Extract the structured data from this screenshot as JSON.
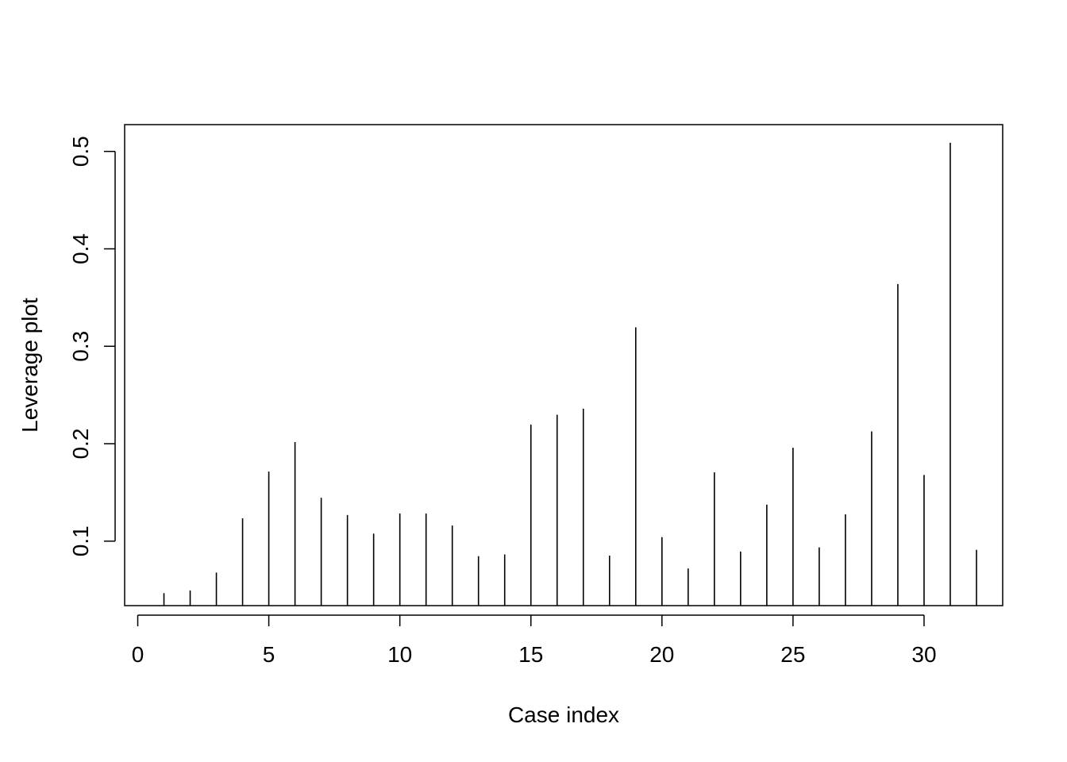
{
  "chart_data": {
    "type": "bar",
    "style": "histogram-spikes",
    "title": "",
    "xlabel": "Case index",
    "ylabel": "Leverage plot",
    "xlim": [
      -0.5,
      33.0
    ],
    "ylim": [
      0.0338,
      0.5275
    ],
    "xticks": [
      0,
      5,
      10,
      15,
      20,
      25,
      30
    ],
    "yticks": [
      0.1,
      0.2,
      0.3,
      0.4,
      0.5
    ],
    "xtick_labels": [
      "0",
      "5",
      "10",
      "15",
      "20",
      "25",
      "30"
    ],
    "ytick_labels": [
      "0.1",
      "0.2",
      "0.3",
      "0.4",
      "0.5"
    ],
    "grid": false,
    "legend": "none",
    "bar_color": "#000000",
    "x": [
      1,
      2,
      3,
      4,
      5,
      6,
      7,
      8,
      9,
      10,
      11,
      12,
      13,
      14,
      15,
      16,
      17,
      18,
      19,
      20,
      21,
      22,
      23,
      24,
      25,
      26,
      27,
      28,
      29,
      30,
      31,
      32
    ],
    "values": [
      0.0466,
      0.0494,
      0.0677,
      0.1234,
      0.1714,
      0.2016,
      0.1445,
      0.1268,
      0.1077,
      0.1284,
      0.1284,
      0.116,
      0.0846,
      0.0863,
      0.2196,
      0.2297,
      0.2359,
      0.0851,
      0.3194,
      0.1041,
      0.0719,
      0.1706,
      0.0893,
      0.1375,
      0.1958,
      0.0936,
      0.1275,
      0.2126,
      0.3638,
      0.1679,
      0.5089,
      0.0911
    ]
  }
}
